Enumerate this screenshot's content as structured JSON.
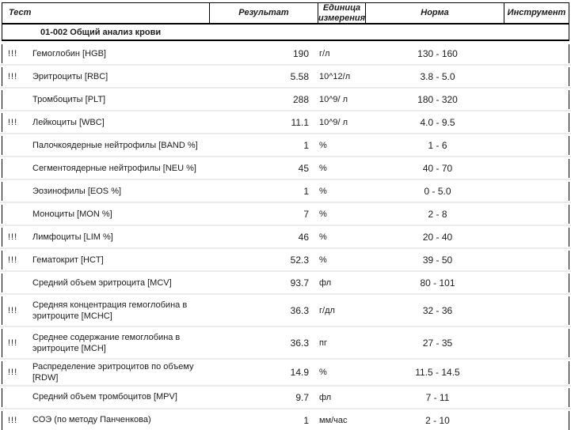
{
  "header": {
    "columns": [
      "Тест",
      "Результат",
      "Единица\nизмерения",
      "Норма",
      "Инструмент"
    ]
  },
  "section": {
    "title": "01-002 Общий анализ крови"
  },
  "abnormal_flag_symbol": "!!!",
  "rows": [
    {
      "flag": "!!!",
      "test": "Гемоглобин [HGB]",
      "result": "190",
      "unit": "г/л",
      "norm": "130 - 160",
      "instrument": ""
    },
    {
      "flag": "!!!",
      "test": "Эритроциты [RBC]",
      "result": "5.58",
      "unit": "10^12/л",
      "norm": "3.8 - 5.0",
      "instrument": ""
    },
    {
      "flag": "",
      "test": "Тромбоциты [PLT]",
      "result": "288",
      "unit": "10^9/ л",
      "norm": "180 - 320",
      "instrument": ""
    },
    {
      "flag": "!!!",
      "test": "Лейкоциты [WBC]",
      "result": "11.1",
      "unit": "10^9/ л",
      "norm": "4.0 - 9.5",
      "instrument": ""
    },
    {
      "flag": "",
      "test": "Палочкоядерные нейтрофилы [BAND %]",
      "result": "1",
      "unit": "%",
      "norm": "1 - 6",
      "instrument": ""
    },
    {
      "flag": "",
      "test": "Сегментоядерные нейтрофилы [NEU %]",
      "result": "45",
      "unit": "%",
      "norm": "40 - 70",
      "instrument": ""
    },
    {
      "flag": "",
      "test": "Эозинофилы [EOS %]",
      "result": "1",
      "unit": "%",
      "norm": "0 - 5.0",
      "instrument": ""
    },
    {
      "flag": "",
      "test": "Моноциты [MON %]",
      "result": "7",
      "unit": "%",
      "norm": "2 - 8",
      "instrument": ""
    },
    {
      "flag": "!!!",
      "test": "Лимфоциты [LIM %]",
      "result": "46",
      "unit": "%",
      "norm": "20 - 40",
      "instrument": ""
    },
    {
      "flag": "!!!",
      "test": "Гематокрит [HCT]",
      "result": "52.3",
      "unit": "%",
      "norm": "39 - 50",
      "instrument": ""
    },
    {
      "flag": "",
      "test": "Средний объем эритроцита [MCV]",
      "result": "93.7",
      "unit": "фл",
      "norm": "80 -  101",
      "instrument": ""
    },
    {
      "flag": "!!!",
      "test": "Средняя концентрация гемоглобина в\nэритроците [MCHC]",
      "result": "36.3",
      "unit": "г/дл",
      "norm": "32 - 36",
      "instrument": "",
      "twoline": true
    },
    {
      "flag": "!!!",
      "test": "Среднее содержание гемоглобина  в\nэритроците [MCH]",
      "result": "36.3",
      "unit": "пг",
      "norm": "27 - 35",
      "instrument": "",
      "twoline": true
    },
    {
      "flag": "!!!",
      "test": "Распределение эритроцитов по объему [RDW]",
      "result": "14.9",
      "unit": "%",
      "norm": "11.5 - 14.5",
      "instrument": ""
    },
    {
      "flag": "",
      "test": "Средний объем тромбоцитов [MPV]",
      "result": "9.7",
      "unit": "фл",
      "norm": "7 - 11",
      "instrument": ""
    },
    {
      "flag": "!!!",
      "test": "СОЭ (по методу Панченкова)",
      "result": "1",
      "unit": "мм/час",
      "norm": "2 - 10",
      "instrument": ""
    }
  ]
}
